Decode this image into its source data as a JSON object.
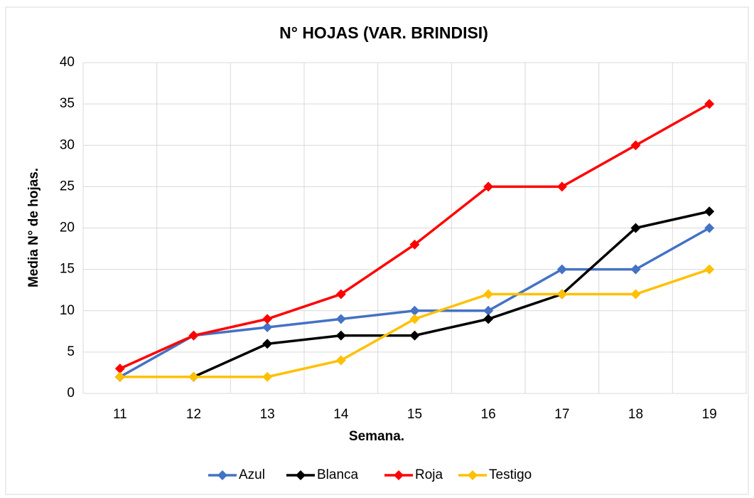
{
  "chart_data": {
    "type": "line",
    "title": "N° HOJAS (VAR. BRINDISI)",
    "x_label": "Semana.",
    "y_label": "Media N° de hojas.",
    "categories": [
      "11",
      "12",
      "13",
      "14",
      "15",
      "16",
      "17",
      "18",
      "19"
    ],
    "series": [
      {
        "name": "Azul",
        "color": "#4472c4",
        "values": [
          2,
          7,
          8,
          9,
          10,
          10,
          15,
          15,
          20
        ]
      },
      {
        "name": "Blanca",
        "color": "#000000",
        "values": [
          2,
          2,
          6,
          7,
          7,
          9,
          12,
          20,
          22
        ]
      },
      {
        "name": "Roja",
        "color": "#ff0000",
        "values": [
          3,
          7,
          9,
          12,
          18,
          25,
          25,
          30,
          35
        ]
      },
      {
        "name": "Testigo",
        "color": "#ffc000",
        "values": [
          2,
          2,
          2,
          4,
          9,
          12,
          12,
          12,
          15
        ]
      }
    ],
    "ylim": [
      0,
      40
    ],
    "yticks": [
      0,
      5,
      10,
      15,
      20,
      25,
      30,
      35,
      40
    ],
    "grid": true,
    "legend": "bottom"
  }
}
